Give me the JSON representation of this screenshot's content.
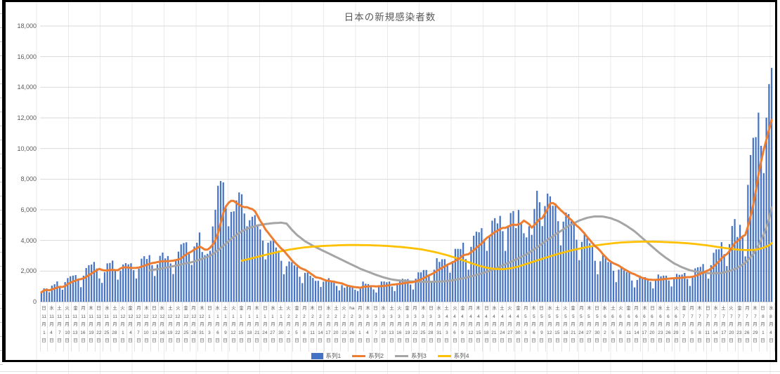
{
  "title": "日本の新規感染者数",
  "legend": [
    {
      "label": "系列1",
      "swatch": "bar",
      "color": "#4472C4"
    },
    {
      "label": "系列2",
      "swatch": "line",
      "color": "#ED7D31"
    },
    {
      "label": "系列3",
      "swatch": "line",
      "color": "#A5A5A5"
    },
    {
      "label": "系列4",
      "swatch": "line",
      "color": "#FFC000"
    }
  ],
  "y_axis": {
    "ticks": [
      "0",
      "2,000",
      "4,000",
      "6,000",
      "8,000",
      "10,000",
      "12,000",
      "14,000",
      "16,000",
      "18,000"
    ],
    "min": 0,
    "max": 18000,
    "step": 2000
  },
  "x_axis": {
    "note": "labels every 3 days, vertical text: weekday / month / 月 / day / 日",
    "labels": [
      "日,11,1",
      "水,11,4",
      "土,11,7",
      "火,11,10",
      "金,11,13",
      "月,11,16",
      "木,11,19",
      "日,11,22",
      "水,11,25",
      "土,11,28",
      "火,12,1",
      "金,12,4",
      "月,12,7",
      "木,12,10",
      "日,12,13",
      "水,12,16",
      "土,12,19",
      "火,12,22",
      "金,12,25",
      "月,12,28",
      "木,12,31",
      "日,1,3",
      "水,1,6",
      "土,1,9",
      "火,1,12",
      "金,1,15",
      "月,1,18",
      "木,1,21",
      "日,1,24",
      "水,1,27",
      "土,1,30",
      "火,2,2",
      "金,2,5",
      "月,2,8",
      "木,2,11",
      "日,2,14",
      "水,2,17",
      "土,2,20",
      "火,2,23",
      "ha,2,26",
      "月,3,1",
      "木,3,4",
      "日,3,7",
      "水,3,10",
      "土,3,13",
      "火,3,16",
      "金,3,19",
      "月,3,22",
      "木,3,25",
      "日,3,28",
      "水,3,31",
      "土,4,3",
      "火,4,6",
      "金,4,9",
      "月,4,12",
      "木,4,15",
      "日,4,18",
      "水,4,21",
      "土,4,24",
      "火,4,27",
      "金,4,30",
      "月,5,3",
      "木,5,6",
      "日,5,9",
      "水,5,12",
      "土,5,15",
      "火,5,18",
      "金,5,21",
      "月,5,24",
      "木,5,27",
      "日,5,30",
      "水,6,2",
      "土,6,5",
      "火,6,8",
      "金,6,11",
      "月,6,14",
      "木,6,17",
      "日,6,20",
      "水,6,23",
      "土,6,26",
      "火,6,29",
      "金,7,2",
      "月,7,5",
      "木,7,8",
      "日,7,11",
      "水,7,14",
      "土,7,17",
      "火,7,20",
      "金,7,23",
      "月,7,26",
      "木,7,29",
      "日,8,1",
      "水,8,4"
    ]
  },
  "chart_data": {
    "type": "combo (bar + 3 lines)",
    "title": "日本の新規感染者数",
    "ylim": [
      0,
      18000
    ],
    "grid": "horizontal only",
    "legend_position": "bottom",
    "n_points": 278,
    "date_range": "2020-11-01 .. 2021-08-05 (daily)",
    "series": [
      {
        "name": "系列1",
        "type": "bar",
        "color": "#4472C4",
        "values": [
          614,
          871,
          868,
          620,
          1050,
          1141,
          1324,
          953,
          781,
          1284,
          1543,
          1661,
          1704,
          1738,
          1441,
          950,
          1699,
          2201,
          2386,
          2427,
          2596,
          2168,
          1520,
          1229,
          1930,
          2504,
          2531,
          2684,
          2066,
          1440,
          2030,
          2427,
          2518,
          2442,
          2508,
          2058,
          1515,
          2152,
          2810,
          2972,
          2790,
          3041,
          2388,
          1680,
          2432,
          2994,
          3211,
          2829,
          2982,
          2501,
          1806,
          2688,
          3271,
          3742,
          3832,
          3881,
          3127,
          2403,
          3604,
          3852,
          4520,
          3246,
          3044,
          3127,
          3325,
          4915,
          6001,
          7570,
          7882,
          7790,
          6097,
          4925,
          5862,
          5903,
          6607,
          7133,
          7014,
          5759,
          4925,
          5320,
          5549,
          5653,
          5045,
          4717,
          3988,
          2764,
          3853,
          3971,
          4133,
          3539,
          3344,
          2673,
          1792,
          2324,
          2631,
          2576,
          2372,
          2277,
          1631,
          1216,
          1887,
          1891,
          1693,
          1552,
          1362,
          1364,
          965,
          1307,
          1448,
          1538,
          1301,
          1234,
          1032,
          740,
          1083,
          919,
          1076,
          1029,
          995,
          783,
          697,
          888,
          1316,
          1174,
          1150,
          1068,
          800,
          599,
          973,
          1321,
          1320,
          1271,
          1319,
          989,
          695,
          1133,
          1449,
          1500,
          1463,
          1485,
          1122,
          796,
          1504,
          1918,
          1917,
          2070,
          2072,
          1785,
          1348,
          2087,
          2843,
          2602,
          2770,
          2779,
          2472,
          1897,
          2653,
          3449,
          3451,
          3440,
          3854,
          2781,
          2091,
          3585,
          4309,
          4571,
          4532,
          4802,
          4093,
          3320,
          4342,
          5291,
          5452,
          5113,
          5605,
          4605,
          3318,
          4965,
          5792,
          5918,
          4808,
          5986,
          5112,
          4470,
          4199,
          4928,
          4365,
          6058,
          7244,
          6493,
          4938,
          6243,
          7060,
          6880,
          6263,
          6421,
          5259,
          3679,
          5231,
          5816,
          5722,
          5251,
          5041,
          4048,
          2712,
          3904,
          4536,
          4142,
          3822,
          3604,
          2672,
          1792,
          2643,
          3036,
          2852,
          2591,
          2644,
          2021,
          1276,
          2093,
          2242,
          2046,
          1937,
          1942,
          1385,
          937,
          1418,
          1709,
          1555,
          1605,
          1521,
          1307,
          868,
          1437,
          1777,
          1661,
          1706,
          1701,
          1387,
          995,
          1522,
          1817,
          1754,
          1775,
          1879,
          1485,
          1030,
          1673,
          2180,
          2246,
          2276,
          2458,
          2026,
          1506,
          2386,
          3194,
          3418,
          3423,
          3886,
          3103,
          2329,
          3758,
          4943,
          5397,
          4225,
          5020,
          4204,
          2963,
          7629,
          9576,
          10699,
          10744,
          12341,
          10177,
          8393,
          12017,
          14207,
          15263
        ]
      },
      {
        "name": "系列2",
        "type": "line",
        "color": "#ED7D31",
        "derivation": "7-day moving average of 系列1 (computed)"
      },
      {
        "name": "系列3",
        "type": "line",
        "color": "#A5A5A5",
        "points": [
          [
            41,
            2050
          ],
          [
            45,
            2150
          ],
          [
            49,
            2280
          ],
          [
            53,
            2430
          ],
          [
            57,
            2580
          ],
          [
            61,
            2800
          ],
          [
            64,
            3000
          ],
          [
            67,
            3350
          ],
          [
            70,
            3800
          ],
          [
            73,
            4250
          ],
          [
            76,
            4600
          ],
          [
            79,
            4830
          ],
          [
            82,
            4980
          ],
          [
            85,
            5070
          ],
          [
            88,
            5130
          ],
          [
            91,
            5160
          ],
          [
            93,
            5100
          ],
          [
            95,
            4700
          ],
          [
            97,
            4350
          ],
          [
            100,
            3950
          ],
          [
            103,
            3650
          ],
          [
            106,
            3400
          ],
          [
            109,
            3150
          ],
          [
            112,
            2900
          ],
          [
            115,
            2650
          ],
          [
            118,
            2400
          ],
          [
            121,
            2150
          ],
          [
            124,
            1950
          ],
          [
            127,
            1750
          ],
          [
            130,
            1580
          ],
          [
            133,
            1450
          ],
          [
            136,
            1380
          ],
          [
            140,
            1330
          ],
          [
            144,
            1300
          ],
          [
            148,
            1300
          ],
          [
            152,
            1320
          ],
          [
            156,
            1400
          ],
          [
            160,
            1530
          ],
          [
            164,
            1700
          ],
          [
            168,
            1900
          ],
          [
            172,
            2150
          ],
          [
            176,
            2450
          ],
          [
            180,
            2750
          ],
          [
            184,
            3100
          ],
          [
            188,
            3550
          ],
          [
            192,
            4050
          ],
          [
            196,
            4500
          ],
          [
            200,
            4950
          ],
          [
            204,
            5300
          ],
          [
            207,
            5480
          ],
          [
            210,
            5570
          ],
          [
            213,
            5560
          ],
          [
            216,
            5450
          ],
          [
            219,
            5250
          ],
          [
            222,
            4950
          ],
          [
            225,
            4600
          ],
          [
            228,
            4150
          ],
          [
            231,
            3700
          ],
          [
            234,
            3250
          ],
          [
            237,
            2850
          ],
          [
            240,
            2500
          ],
          [
            243,
            2250
          ],
          [
            246,
            2050
          ],
          [
            249,
            1950
          ],
          [
            252,
            1880
          ],
          [
            255,
            1850
          ],
          [
            258,
            1880
          ],
          [
            261,
            2000
          ],
          [
            264,
            2200
          ],
          [
            267,
            2550
          ],
          [
            270,
            3100
          ],
          [
            272,
            3700
          ],
          [
            274,
            4400
          ],
          [
            275,
            4850
          ],
          [
            276,
            5400
          ],
          [
            277,
            6150
          ]
        ]
      },
      {
        "name": "系列4",
        "type": "line",
        "color": "#FFC000",
        "points": [
          [
            76,
            2680
          ],
          [
            79,
            2800
          ],
          [
            82,
            2930
          ],
          [
            85,
            3060
          ],
          [
            88,
            3180
          ],
          [
            91,
            3300
          ],
          [
            94,
            3400
          ],
          [
            97,
            3480
          ],
          [
            100,
            3550
          ],
          [
            104,
            3610
          ],
          [
            108,
            3650
          ],
          [
            112,
            3680
          ],
          [
            116,
            3700
          ],
          [
            120,
            3700
          ],
          [
            124,
            3690
          ],
          [
            128,
            3670
          ],
          [
            132,
            3630
          ],
          [
            136,
            3580
          ],
          [
            140,
            3510
          ],
          [
            144,
            3420
          ],
          [
            148,
            3290
          ],
          [
            151,
            3170
          ],
          [
            154,
            3030
          ],
          [
            157,
            2870
          ],
          [
            160,
            2700
          ],
          [
            163,
            2520
          ],
          [
            166,
            2350
          ],
          [
            169,
            2220
          ],
          [
            172,
            2140
          ],
          [
            175,
            2120
          ],
          [
            178,
            2180
          ],
          [
            181,
            2300
          ],
          [
            184,
            2470
          ],
          [
            187,
            2640
          ],
          [
            190,
            2800
          ],
          [
            193,
            2970
          ],
          [
            196,
            3120
          ],
          [
            199,
            3260
          ],
          [
            202,
            3390
          ],
          [
            205,
            3500
          ],
          [
            208,
            3600
          ],
          [
            211,
            3690
          ],
          [
            214,
            3760
          ],
          [
            217,
            3820
          ],
          [
            220,
            3870
          ],
          [
            224,
            3900
          ],
          [
            228,
            3920
          ],
          [
            232,
            3920
          ],
          [
            236,
            3900
          ],
          [
            240,
            3870
          ],
          [
            244,
            3830
          ],
          [
            248,
            3770
          ],
          [
            252,
            3690
          ],
          [
            256,
            3590
          ],
          [
            259,
            3510
          ],
          [
            262,
            3440
          ],
          [
            265,
            3390
          ],
          [
            268,
            3370
          ],
          [
            270,
            3380
          ],
          [
            272,
            3430
          ],
          [
            274,
            3530
          ],
          [
            276,
            3680
          ],
          [
            277,
            3820
          ]
        ]
      }
    ]
  },
  "colors": {
    "bar": "#4472C4",
    "line2": "#ED7D31",
    "line3": "#A5A5A5",
    "line4": "#FFC000",
    "text": "#595959",
    "gridline": "#d9d9d9",
    "axis_line": "#bfbfbf",
    "frame": "#000000",
    "cell_grid": "#ebebeb",
    "background": "#ffffff"
  }
}
